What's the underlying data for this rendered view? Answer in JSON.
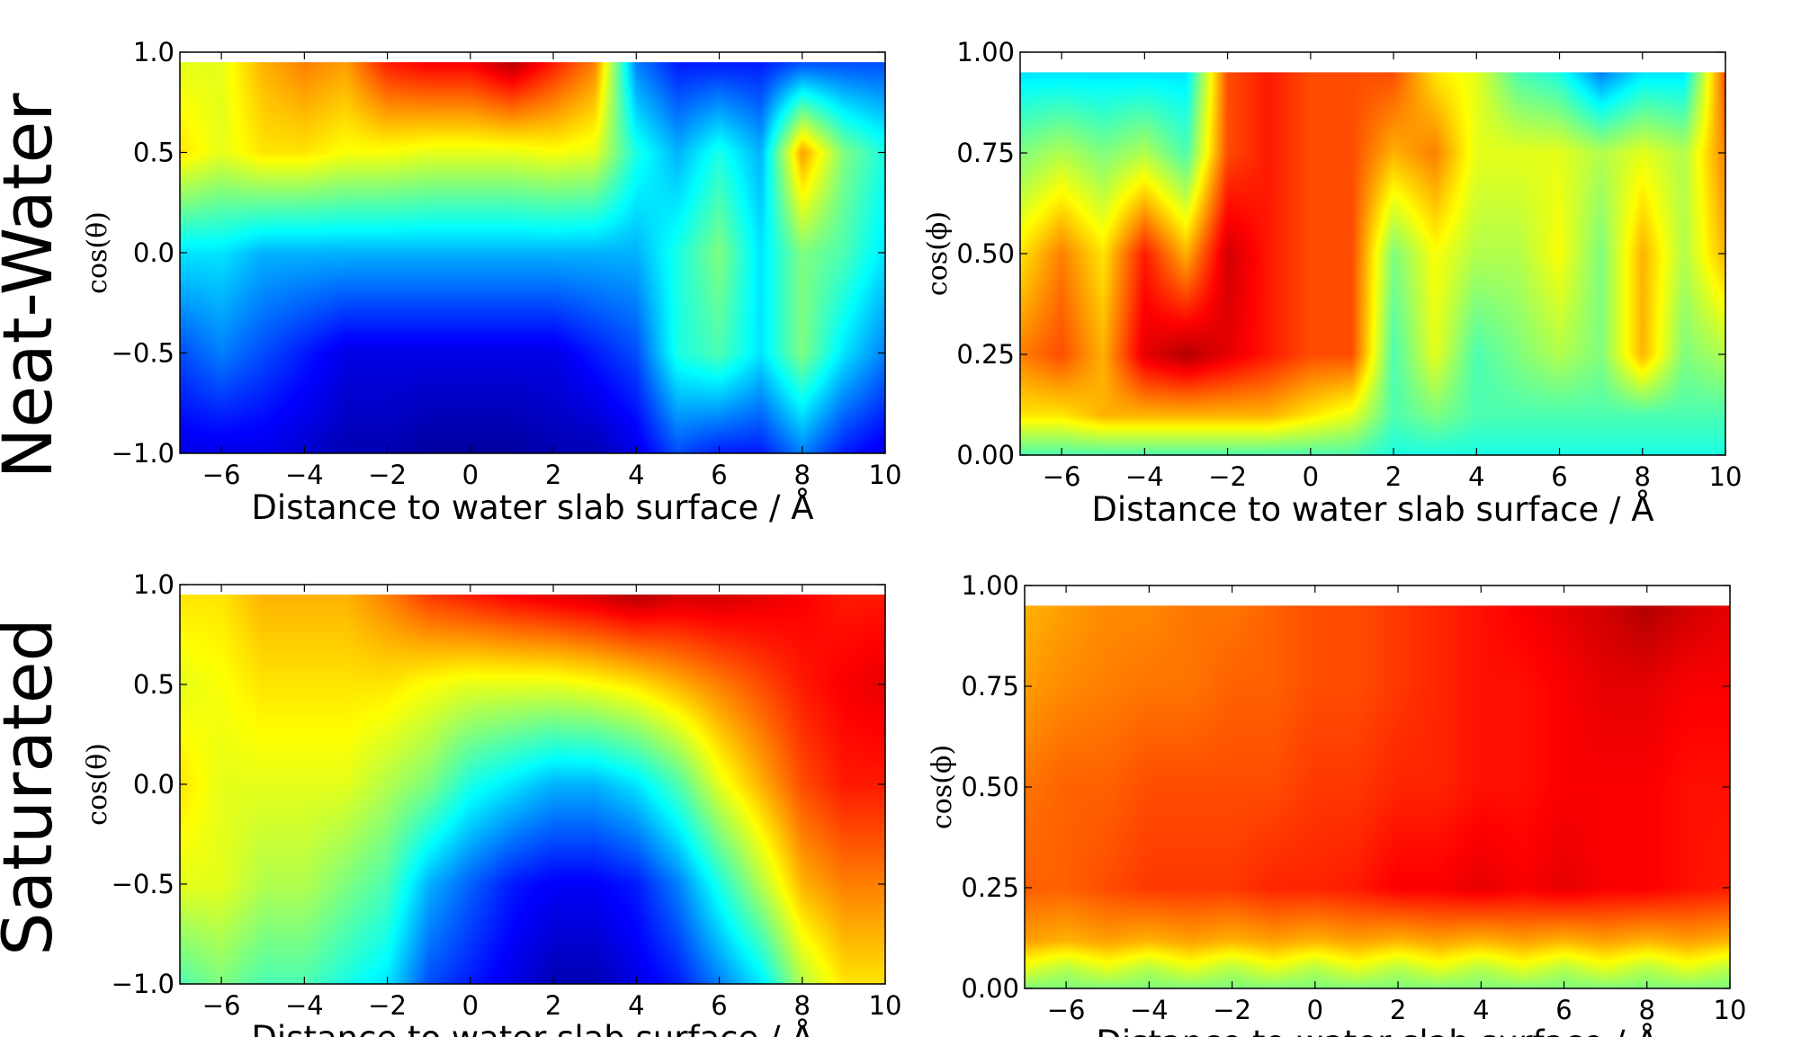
{
  "row_labels": [
    "Neat-Water",
    "Saturated"
  ],
  "colormap": [
    "#00007f",
    "#0000ff",
    "#007fff",
    "#00ffff",
    "#7fff7f",
    "#ffff00",
    "#ff7f00",
    "#ff0000",
    "#7f0000"
  ],
  "chart_data": [
    {
      "type": "heatmap",
      "row": "Neat-Water",
      "xlabel": "Distance to water slab surface / Å",
      "ylabel": "cos(θ)",
      "xlim": [
        -7,
        10
      ],
      "ylim": [
        -1.0,
        1.0
      ],
      "data_ymax": 0.95,
      "xticks": [
        -6,
        -4,
        -2,
        0,
        2,
        4,
        6,
        8,
        10
      ],
      "xtick_labels": [
        "−6",
        "−4",
        "−2",
        "0",
        "2",
        "4",
        "6",
        "8",
        "10"
      ],
      "yticks": [
        -1.0,
        -0.5,
        0.0,
        0.5,
        1.0
      ],
      "ytick_labels": [
        "−1.0",
        "−0.5",
        "0.0",
        "0.5",
        "1.0"
      ],
      "x": [
        -7,
        -6,
        -5,
        -4,
        -3,
        -2,
        -1,
        0,
        1,
        2,
        3,
        4,
        5,
        6,
        7,
        8,
        9,
        10
      ],
      "y": [
        -1.0,
        -0.5,
        0.0,
        0.5,
        0.95
      ],
      "z": [
        [
          0.1,
          0.1,
          0.1,
          0.08,
          0.05,
          0.05,
          0.03,
          0.03,
          0.03,
          0.05,
          0.05,
          0.1,
          0.2,
          0.15,
          0.15,
          0.25,
          0.15,
          0.1
        ],
        [
          0.2,
          0.25,
          0.2,
          0.15,
          0.1,
          0.1,
          0.1,
          0.1,
          0.1,
          0.1,
          0.15,
          0.2,
          0.4,
          0.45,
          0.35,
          0.5,
          0.35,
          0.25
        ],
        [
          0.35,
          0.35,
          0.3,
          0.3,
          0.3,
          0.3,
          0.3,
          0.3,
          0.3,
          0.3,
          0.3,
          0.3,
          0.4,
          0.5,
          0.35,
          0.5,
          0.45,
          0.35
        ],
        [
          0.65,
          0.6,
          0.65,
          0.65,
          0.62,
          0.62,
          0.6,
          0.6,
          0.6,
          0.62,
          0.6,
          0.4,
          0.3,
          0.4,
          0.3,
          0.72,
          0.5,
          0.4
        ],
        [
          0.6,
          0.6,
          0.7,
          0.75,
          0.72,
          0.85,
          0.88,
          0.88,
          0.95,
          0.85,
          0.75,
          0.25,
          0.15,
          0.15,
          0.15,
          0.2,
          0.2,
          0.2
        ]
      ]
    },
    {
      "type": "heatmap",
      "row": "Neat-Water",
      "xlabel": "Distance to water slab surface / Å",
      "ylabel": "cos(ϕ)",
      "xlim": [
        -7,
        10
      ],
      "ylim": [
        0.0,
        1.0
      ],
      "data_ymax": 0.95,
      "xticks": [
        -6,
        -4,
        -2,
        0,
        2,
        4,
        6,
        8,
        10
      ],
      "xtick_labels": [
        "−6",
        "−4",
        "−2",
        "0",
        "2",
        "4",
        "6",
        "8",
        "10"
      ],
      "yticks": [
        0.0,
        0.25,
        0.5,
        0.75,
        1.0
      ],
      "ytick_labels": [
        "0.00",
        "0.25",
        "0.50",
        "0.75",
        "1.00"
      ],
      "x": [
        -7,
        -6,
        -5,
        -4,
        -3,
        -2,
        -1,
        0,
        1,
        2,
        3,
        4,
        5,
        6,
        7,
        8,
        9,
        10
      ],
      "y": [
        0.0,
        0.1,
        0.25,
        0.5,
        0.75,
        0.95
      ],
      "z": [
        [
          0.45,
          0.45,
          0.45,
          0.45,
          0.45,
          0.45,
          0.45,
          0.45,
          0.45,
          0.4,
          0.4,
          0.4,
          0.4,
          0.4,
          0.4,
          0.4,
          0.4,
          0.4
        ],
        [
          0.65,
          0.65,
          0.7,
          0.7,
          0.7,
          0.7,
          0.7,
          0.65,
          0.6,
          0.45,
          0.5,
          0.45,
          0.45,
          0.45,
          0.45,
          0.45,
          0.45,
          0.45
        ],
        [
          0.75,
          0.8,
          0.7,
          0.9,
          0.95,
          0.9,
          0.85,
          0.8,
          0.8,
          0.45,
          0.6,
          0.45,
          0.5,
          0.55,
          0.5,
          0.7,
          0.5,
          0.55
        ],
        [
          0.65,
          0.75,
          0.65,
          0.85,
          0.7,
          0.92,
          0.85,
          0.8,
          0.8,
          0.5,
          0.62,
          0.55,
          0.55,
          0.62,
          0.5,
          0.7,
          0.55,
          0.7
        ],
        [
          0.5,
          0.55,
          0.5,
          0.55,
          0.45,
          0.8,
          0.85,
          0.8,
          0.8,
          0.7,
          0.75,
          0.6,
          0.6,
          0.6,
          0.55,
          0.6,
          0.55,
          0.75
        ],
        [
          0.35,
          0.35,
          0.35,
          0.35,
          0.35,
          0.8,
          0.85,
          0.8,
          0.8,
          0.8,
          0.65,
          0.6,
          0.45,
          0.4,
          0.25,
          0.35,
          0.35,
          0.8
        ]
      ]
    },
    {
      "type": "heatmap",
      "row": "Saturated",
      "xlabel": "Distance to water slab surface / Å",
      "ylabel": "cos(θ)",
      "xlim": [
        -7,
        10
      ],
      "ylim": [
        -1.0,
        1.0
      ],
      "data_ymax": 0.95,
      "xticks": [
        -6,
        -4,
        -2,
        0,
        2,
        4,
        6,
        8,
        10
      ],
      "xtick_labels": [
        "−6",
        "−4",
        "−2",
        "0",
        "2",
        "4",
        "6",
        "8",
        "10"
      ],
      "yticks": [
        -1.0,
        -0.5,
        0.0,
        0.5,
        1.0
      ],
      "ytick_labels": [
        "−1.0",
        "−0.5",
        "0.0",
        "0.5",
        "1.0"
      ],
      "x": [
        -7,
        -6,
        -5,
        -4,
        -3,
        -2,
        -1,
        0,
        1,
        2,
        3,
        4,
        5,
        6,
        7,
        8,
        9,
        10
      ],
      "y": [
        -1.0,
        -0.5,
        0.0,
        0.5,
        0.95
      ],
      "z": [
        [
          0.45,
          0.5,
          0.45,
          0.45,
          0.4,
          0.35,
          0.2,
          0.15,
          0.1,
          0.05,
          0.05,
          0.1,
          0.15,
          0.25,
          0.35,
          0.55,
          0.65,
          0.65
        ],
        [
          0.6,
          0.6,
          0.55,
          0.55,
          0.5,
          0.45,
          0.3,
          0.22,
          0.15,
          0.12,
          0.12,
          0.15,
          0.25,
          0.4,
          0.55,
          0.7,
          0.75,
          0.75
        ],
        [
          0.65,
          0.6,
          0.6,
          0.6,
          0.6,
          0.55,
          0.5,
          0.4,
          0.35,
          0.3,
          0.3,
          0.35,
          0.45,
          0.6,
          0.7,
          0.8,
          0.85,
          0.85
        ],
        [
          0.6,
          0.62,
          0.65,
          0.65,
          0.65,
          0.65,
          0.62,
          0.6,
          0.6,
          0.6,
          0.62,
          0.65,
          0.7,
          0.75,
          0.8,
          0.85,
          0.88,
          0.9
        ],
        [
          0.65,
          0.65,
          0.7,
          0.7,
          0.7,
          0.75,
          0.82,
          0.85,
          0.88,
          0.9,
          0.92,
          0.95,
          0.92,
          0.92,
          0.9,
          0.88,
          0.85,
          0.85
        ]
      ]
    },
    {
      "type": "heatmap",
      "row": "Saturated",
      "xlabel": "Distance to water slab surface / Å",
      "ylabel": "cos(ϕ)",
      "xlim": [
        -7,
        10
      ],
      "ylim": [
        0.0,
        1.0
      ],
      "data_ymax": 0.95,
      "xticks": [
        -6,
        -4,
        -2,
        0,
        2,
        4,
        6,
        8,
        10
      ],
      "xtick_labels": [
        "−6",
        "−4",
        "−2",
        "0",
        "2",
        "4",
        "6",
        "8",
        "10"
      ],
      "yticks": [
        0.0,
        0.25,
        0.5,
        0.75,
        1.0
      ],
      "ytick_labels": [
        "0.00",
        "0.25",
        "0.50",
        "0.75",
        "1.00"
      ],
      "x": [
        -7,
        -6,
        -5,
        -4,
        -3,
        -2,
        -1,
        0,
        1,
        2,
        3,
        4,
        5,
        6,
        7,
        8,
        9,
        10
      ],
      "y": [
        0.0,
        0.05,
        0.12,
        0.25,
        0.5,
        0.75,
        0.95
      ],
      "z": [
        [
          0.5,
          0.5,
          0.5,
          0.5,
          0.5,
          0.5,
          0.5,
          0.5,
          0.5,
          0.5,
          0.5,
          0.5,
          0.5,
          0.5,
          0.5,
          0.5,
          0.5,
          0.5
        ],
        [
          0.6,
          0.55,
          0.6,
          0.55,
          0.6,
          0.55,
          0.6,
          0.55,
          0.6,
          0.55,
          0.6,
          0.55,
          0.6,
          0.55,
          0.6,
          0.55,
          0.6,
          0.55
        ],
        [
          0.72,
          0.7,
          0.72,
          0.7,
          0.72,
          0.7,
          0.72,
          0.7,
          0.72,
          0.7,
          0.72,
          0.7,
          0.72,
          0.7,
          0.72,
          0.7,
          0.72,
          0.7
        ],
        [
          0.78,
          0.78,
          0.8,
          0.82,
          0.82,
          0.82,
          0.84,
          0.84,
          0.85,
          0.88,
          0.88,
          0.9,
          0.88,
          0.9,
          0.88,
          0.88,
          0.86,
          0.85
        ],
        [
          0.76,
          0.78,
          0.78,
          0.8,
          0.8,
          0.8,
          0.8,
          0.82,
          0.82,
          0.84,
          0.84,
          0.86,
          0.86,
          0.88,
          0.88,
          0.88,
          0.86,
          0.86
        ],
        [
          0.72,
          0.74,
          0.75,
          0.76,
          0.76,
          0.78,
          0.78,
          0.8,
          0.8,
          0.82,
          0.84,
          0.86,
          0.86,
          0.88,
          0.9,
          0.9,
          0.88,
          0.88
        ],
        [
          0.7,
          0.72,
          0.74,
          0.74,
          0.76,
          0.76,
          0.78,
          0.8,
          0.8,
          0.82,
          0.84,
          0.86,
          0.88,
          0.9,
          0.92,
          0.95,
          0.92,
          0.9
        ]
      ]
    }
  ]
}
